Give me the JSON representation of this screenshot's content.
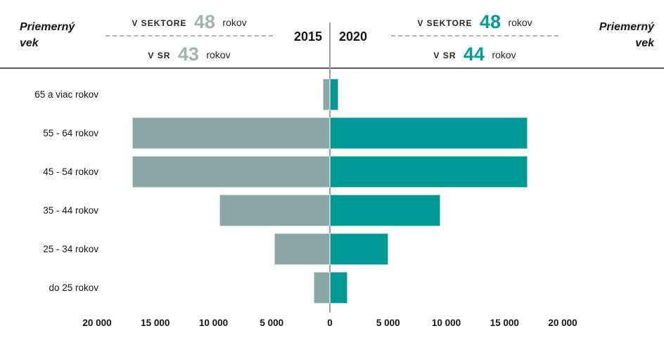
{
  "header": {
    "left_title": {
      "line1": "Priemerný",
      "line2": "vek"
    },
    "right_title": {
      "line1": "Priemerný",
      "line2": "vek"
    },
    "left_stats": {
      "row1_label": "V SEKTORE",
      "row1_value": "48",
      "row1_unit": "rokov",
      "row2_label": "V SR",
      "row2_value": "43",
      "row2_unit": "rokov"
    },
    "right_stats": {
      "row1_label": "V SEKTORE",
      "row1_value": "48",
      "row1_unit": "rokov",
      "row2_label": "V SR",
      "row2_value": "44",
      "row2_unit": "rokov"
    },
    "year_left": "2015",
    "year_right": "2020"
  },
  "colors": {
    "bar_2015": "#8ba6a4",
    "bar_2020": "#009894",
    "accent_2015": "#9fb4b2",
    "accent_2020": "#009d99",
    "axis_line": "#9e9e9e",
    "separator": "#5a5a5a"
  },
  "chart_data": {
    "type": "bar",
    "subtype": "population-pyramid-horizontal",
    "title": "",
    "categories": [
      "65 a viac rokov",
      "55 - 64 rokov",
      "45 - 54 rokov",
      "35 - 44 rokov",
      "25 - 34 rokov",
      "do 25 rokov"
    ],
    "series": [
      {
        "name": "2015",
        "side": "left",
        "color": "#8ba6a4",
        "values": [
          600,
          17000,
          17000,
          9500,
          4800,
          1400
        ]
      },
      {
        "name": "2020",
        "side": "right",
        "color": "#009894",
        "values": [
          700,
          17000,
          17000,
          9500,
          5000,
          1500
        ]
      }
    ],
    "annotations": {
      "left_avg_sector": "V SEKTORE 48 rokov",
      "left_avg_sr": "V SR 43 rokov",
      "right_avg_sector": "V SEKTORE 48 rokov",
      "right_avg_sr": "V SR 44 rokov"
    },
    "axis": {
      "max": 20000,
      "tick_interval": 5000,
      "tick_labels": [
        "20 000",
        "15 000",
        "10 000",
        "5 000",
        "0",
        "5 000",
        "10 000",
        "15 000",
        "20 000"
      ]
    },
    "grid": false,
    "legend_position": "top-center"
  }
}
